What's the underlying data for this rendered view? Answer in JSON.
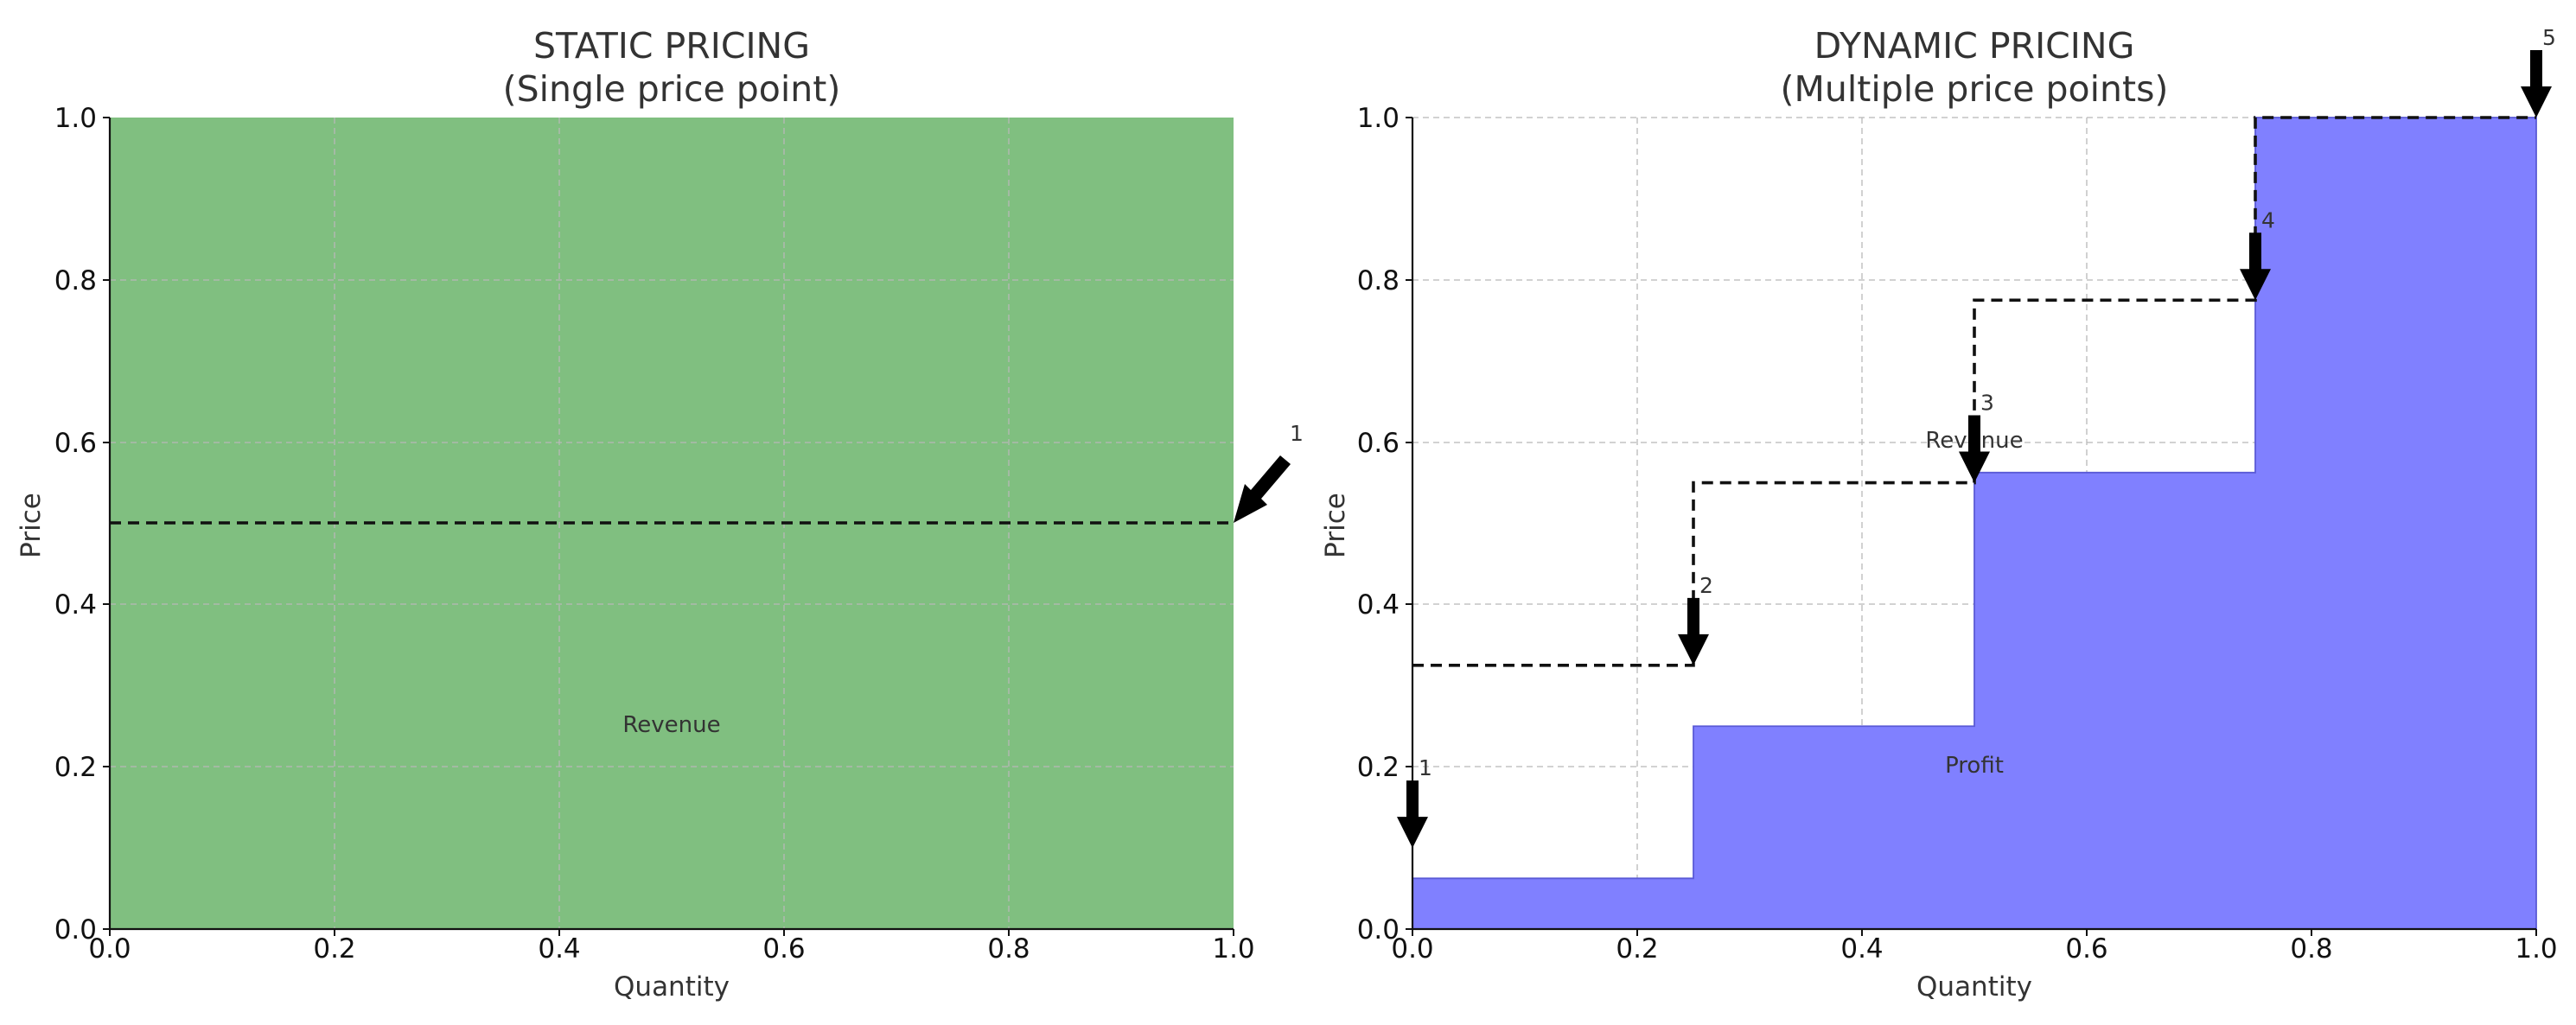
{
  "chart_data": [
    {
      "type": "area",
      "title": "STATIC PRICING",
      "subtitle": "(Single price point)",
      "xlabel": "Quantity",
      "ylabel": "Price",
      "xlim": [
        0,
        1
      ],
      "ylim": [
        0,
        1
      ],
      "xticks": [
        "0.0",
        "0.2",
        "0.4",
        "0.6",
        "0.8",
        "1.0"
      ],
      "yticks": [
        "0.0",
        "0.2",
        "0.4",
        "0.6",
        "0.8",
        "1.0"
      ],
      "grid": true,
      "fill": {
        "x": [
          0,
          1
        ],
        "y_top": 1.0,
        "color": "#80bf80"
      },
      "price_line": {
        "x": [
          0,
          1
        ],
        "y": [
          0.5,
          0.5
        ]
      },
      "arrows": [
        {
          "label": "1",
          "x": 1.0,
          "y": 0.5
        }
      ],
      "annotations": [
        {
          "text": "Revenue",
          "x": 0.5,
          "y": 0.25
        }
      ]
    },
    {
      "type": "area",
      "title": "DYNAMIC PRICING",
      "subtitle": "(Multiple price points)",
      "xlabel": "Quantity",
      "ylabel": "Price",
      "xlim": [
        0,
        1
      ],
      "ylim": [
        0,
        1
      ],
      "xticks": [
        "0.0",
        "0.2",
        "0.4",
        "0.6",
        "0.8",
        "1.0"
      ],
      "yticks": [
        "0.0",
        "0.2",
        "0.4",
        "0.6",
        "0.8",
        "1.0"
      ],
      "grid": true,
      "fill": {
        "color": "#8080ff",
        "steps": [
          {
            "x0": 0.0,
            "x1": 0.25,
            "y": 0.0625
          },
          {
            "x0": 0.25,
            "x1": 0.5,
            "y": 0.25
          },
          {
            "x0": 0.5,
            "x1": 0.75,
            "y": 0.5625
          },
          {
            "x0": 0.75,
            "x1": 1.0,
            "y": 1.0
          }
        ]
      },
      "price_line": {
        "steps": [
          {
            "x0": 0.0,
            "x1": 0.25,
            "y": 0.325
          },
          {
            "x0": 0.25,
            "x1": 0.5,
            "y": 0.55
          },
          {
            "x0": 0.5,
            "x1": 0.75,
            "y": 0.775
          },
          {
            "x0": 0.75,
            "x1": 1.0,
            "y": 1.0
          }
        ]
      },
      "arrows": [
        {
          "label": "1",
          "x": 0.0,
          "y": 0.1
        },
        {
          "label": "2",
          "x": 0.25,
          "y": 0.325
        },
        {
          "label": "3",
          "x": 0.5,
          "y": 0.55
        },
        {
          "label": "4",
          "x": 0.75,
          "y": 0.775
        },
        {
          "label": "5",
          "x": 1.0,
          "y": 1.0
        }
      ],
      "annotations": [
        {
          "text": "Revenue",
          "x": 0.5,
          "y": 0.6
        },
        {
          "text": "Profit",
          "x": 0.5,
          "y": 0.2
        }
      ]
    }
  ]
}
